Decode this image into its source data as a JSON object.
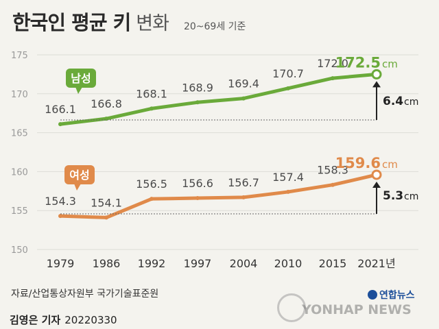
{
  "header": {
    "title": "한국인 평균 키",
    "subtitle": "변화",
    "note": "20~69세 기준"
  },
  "footer": {
    "source": "자료/산업통상자원부 국가기술표준원",
    "author": "김영은 기자",
    "date": "20220330",
    "logo_ko": "연합뉴스",
    "logo_en": "YONHAP NEWS"
  },
  "chart_data": {
    "type": "line",
    "title": "한국인 평균 키 변화",
    "categories": [
      "1979",
      "1986",
      "1992",
      "1997",
      "2004",
      "2010",
      "2015",
      "2021년"
    ],
    "series": [
      {
        "name": "남성",
        "values": [
          166.1,
          166.8,
          168.1,
          168.9,
          169.4,
          170.7,
          172.0,
          172.5
        ],
        "color": "#6aaa3a",
        "last_label": "172.5",
        "unit": "cm"
      },
      {
        "name": "여성",
        "values": [
          154.3,
          154.1,
          156.5,
          156.6,
          156.7,
          157.4,
          158.3,
          159.6
        ],
        "color": "#e08a4a",
        "last_label": "159.6",
        "unit": "cm"
      }
    ],
    "diffs": [
      {
        "label": "6.4",
        "unit": "cm"
      },
      {
        "label": "5.3",
        "unit": "cm"
      }
    ],
    "yticks": [
      150,
      155,
      160,
      165,
      170,
      175
    ],
    "ylim": [
      150,
      175
    ],
    "grid": true
  }
}
